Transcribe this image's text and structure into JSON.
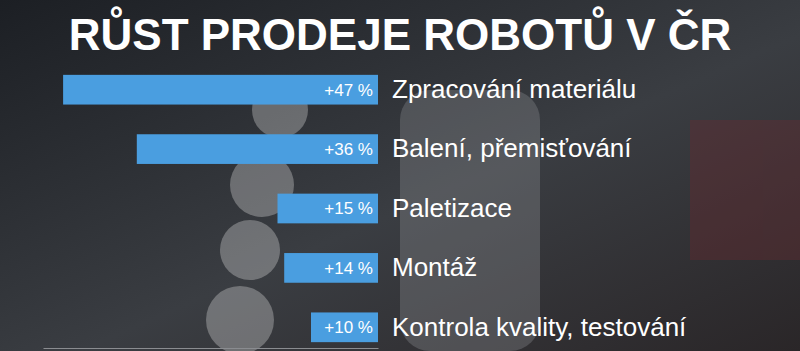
{
  "chart_data": {
    "type": "bar",
    "title": "RŮST PRODEJE ROBOTŮ V ČR",
    "orientation": "horizontal",
    "categories": [
      "Zpracování materiálu",
      "Balení, přemisťování",
      "Paletizace",
      "Montáž",
      "Kontrola kvality, testování"
    ],
    "values": [
      47,
      36,
      15,
      14,
      10
    ],
    "value_labels": [
      "+47 %",
      "+36 %",
      "+15 %",
      "+14 %",
      "+10 %"
    ],
    "color": "#4a9ee0",
    "xlim": [
      0,
      50
    ],
    "xticks": [],
    "data_labels": true,
    "tick_labels": false,
    "grid": false
  }
}
